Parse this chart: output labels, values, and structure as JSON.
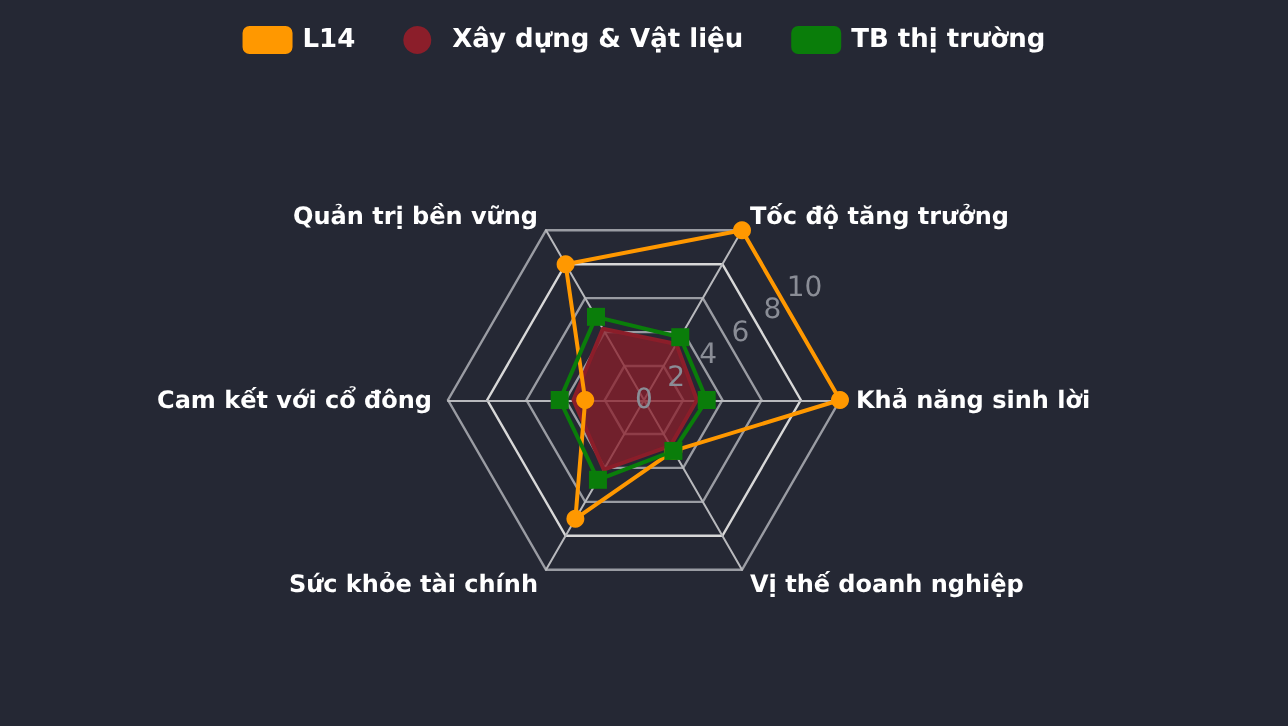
{
  "chart_data": {
    "type": "radar",
    "categories": [
      "Tốc độ tăng trưởng",
      "Khả năng sinh lời",
      "Vị thế doanh nghiệp",
      "Sức khỏe tài chính",
      "Cam kết với cổ đông",
      "Quản trị bền vững"
    ],
    "series": [
      {
        "name": "L14",
        "color": "#ff9800",
        "marker": "circle",
        "values": [
          10,
          10,
          3,
          7,
          3,
          8
        ]
      },
      {
        "name": "Xây dựng & Vật liệu",
        "color": "#8b1e2a",
        "type": "area",
        "marker": "none",
        "values": [
          3.3,
          2.7,
          2.7,
          4.1,
          3.6,
          4.2
        ]
      },
      {
        "name": "TB thị trường",
        "color": "#0a7d0a",
        "marker": "square",
        "values": [
          3.7,
          3.2,
          3,
          4.7,
          4.3,
          4.9
        ]
      }
    ],
    "ylim": [
      0,
      10
    ],
    "yticks": [
      0,
      2,
      4,
      6,
      8,
      10
    ],
    "grid": true,
    "legend": "top"
  }
}
